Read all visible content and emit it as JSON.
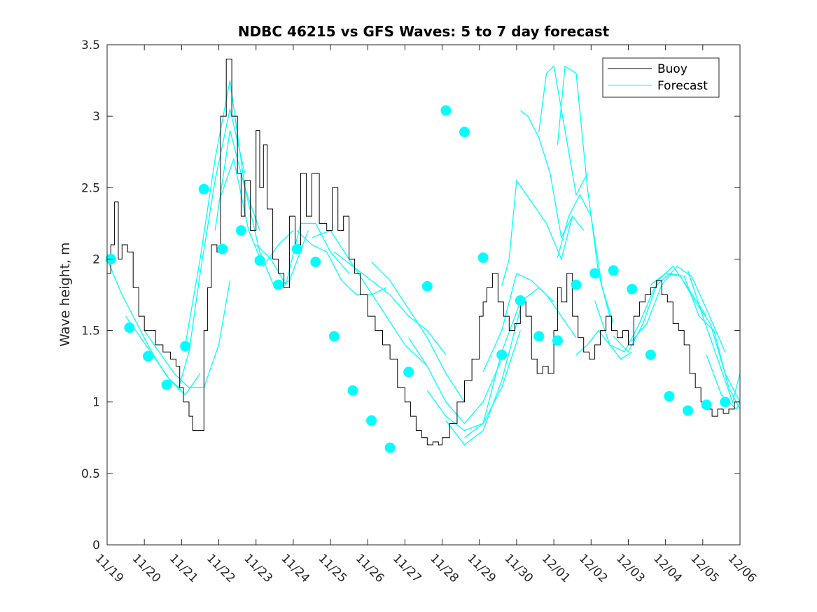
{
  "chart_data": {
    "type": "line",
    "title": "NDBC 46215 vs GFS Waves: 5 to 7 day forecast",
    "xlabel": "",
    "ylabel": "Wave height, m",
    "xlim": [
      0,
      17
    ],
    "ylim": [
      0,
      3.5
    ],
    "yticks": [
      0,
      0.5,
      1,
      1.5,
      2,
      2.5,
      3,
      3.5
    ],
    "ytick_labels": [
      "0",
      "0.5",
      "1",
      "1.5",
      "2",
      "2.5",
      "3",
      "3.5"
    ],
    "xtick_labels": [
      "11/19",
      "11/20",
      "11/21",
      "11/22",
      "11/23",
      "11/24",
      "11/25",
      "11/26",
      "11/27",
      "11/28",
      "11/29",
      "11/30",
      "12/01",
      "12/02",
      "12/03",
      "12/04",
      "12/05",
      "12/06"
    ],
    "grid": false,
    "legend": {
      "position": "top-right",
      "entries": [
        "Buoy",
        "Forecast"
      ]
    },
    "colors": {
      "buoy": "#000000",
      "forecast": "#00ffff",
      "axis": "#262626"
    },
    "series": [
      {
        "name": "Buoy",
        "x": [
          0,
          0.1,
          0.2,
          0.3,
          0.4,
          0.55,
          0.7,
          0.85,
          1.0,
          1.15,
          1.3,
          1.5,
          1.7,
          1.85,
          1.95,
          2.05,
          2.2,
          2.3,
          2.45,
          2.6,
          2.7,
          2.8,
          2.95,
          3.05,
          3.2,
          3.35,
          3.5,
          3.6,
          3.7,
          3.85,
          4.0,
          4.1,
          4.2,
          4.3,
          4.45,
          4.6,
          4.75,
          4.9,
          5.05,
          5.2,
          5.35,
          5.5,
          5.7,
          5.9,
          6.05,
          6.2,
          6.35,
          6.5,
          6.65,
          6.8,
          7.0,
          7.2,
          7.4,
          7.6,
          7.8,
          8.0,
          8.15,
          8.3,
          8.45,
          8.6,
          8.75,
          8.9,
          9.0,
          9.2,
          9.4,
          9.6,
          9.8,
          10.0,
          10.1,
          10.2,
          10.35,
          10.5,
          10.65,
          10.8,
          10.95,
          11.1,
          11.25,
          11.4,
          11.55,
          11.7,
          11.85,
          12.0,
          12.1,
          12.2,
          12.35,
          12.5,
          12.65,
          12.8,
          12.95,
          13.1,
          13.25,
          13.4,
          13.55,
          13.7,
          13.85,
          14.0,
          14.15,
          14.3,
          14.45,
          14.6,
          14.75,
          14.9,
          15.05,
          15.2,
          15.35,
          15.5,
          15.65,
          15.8,
          15.95,
          16.1,
          16.25,
          16.4,
          16.55,
          16.7,
          16.85,
          17.0
        ],
        "values": [
          1.9,
          2.1,
          2.4,
          2.0,
          2.1,
          2.05,
          1.8,
          1.6,
          1.5,
          1.5,
          1.4,
          1.35,
          1.3,
          1.25,
          1.1,
          1.0,
          0.9,
          0.8,
          0.8,
          1.5,
          1.8,
          2.1,
          2.05,
          3.0,
          3.4,
          3.0,
          2.6,
          2.3,
          2.55,
          2.2,
          2.9,
          2.5,
          2.8,
          2.35,
          2.0,
          1.9,
          1.8,
          2.3,
          2.1,
          2.6,
          2.3,
          2.6,
          2.25,
          2.2,
          2.5,
          2.2,
          2.3,
          2.0,
          1.9,
          1.75,
          1.6,
          1.5,
          1.4,
          1.3,
          1.1,
          1.0,
          0.9,
          0.8,
          0.75,
          0.7,
          0.72,
          0.7,
          0.75,
          0.85,
          1.0,
          1.15,
          1.3,
          1.6,
          1.7,
          1.8,
          1.9,
          1.7,
          1.6,
          1.5,
          1.55,
          1.7,
          1.6,
          1.3,
          1.2,
          1.25,
          1.2,
          1.5,
          1.8,
          1.7,
          1.9,
          1.6,
          1.45,
          1.35,
          1.3,
          1.4,
          1.5,
          1.6,
          1.5,
          1.45,
          1.5,
          1.4,
          1.6,
          1.7,
          1.75,
          1.8,
          1.85,
          1.75,
          1.7,
          1.55,
          1.5,
          1.4,
          1.2,
          1.1,
          1.0,
          0.95,
          0.9,
          0.95,
          0.92,
          0.95,
          1.0,
          0.98
        ]
      },
      {
        "name": "Forecast",
        "segments": [
          {
            "x": [
              0.0,
              0.4,
              0.8,
              1.2,
              1.6,
              2.0
            ],
            "values": [
              2.0,
              1.75,
              1.55,
              1.35,
              1.18,
              1.08
            ]
          },
          {
            "x": [
              0.5,
              0.9,
              1.3,
              1.7,
              2.1,
              2.5
            ],
            "values": [
              1.6,
              1.45,
              1.3,
              1.15,
              1.05,
              1.2
            ]
          },
          {
            "x": [
              1.0,
              1.4,
              1.8,
              2.2,
              2.6,
              3.0,
              3.3
            ],
            "values": [
              1.5,
              1.35,
              1.2,
              1.1,
              1.1,
              1.4,
              1.85
            ]
          },
          {
            "x": [
              1.9,
              2.2,
              2.5,
              2.9,
              3.3,
              3.7
            ],
            "values": [
              1.08,
              1.35,
              1.9,
              2.55,
              3.05,
              2.6
            ]
          },
          {
            "x": [
              2.1,
              2.5,
              2.9,
              3.3,
              3.7,
              4.1
            ],
            "values": [
              1.4,
              2.0,
              2.7,
              3.25,
              2.5,
              2.2
            ]
          },
          {
            "x": [
              2.9,
              3.3,
              3.7,
              4.1,
              4.5,
              4.9,
              5.4
            ],
            "values": [
              2.2,
              2.9,
              2.5,
              2.05,
              1.8,
              1.85,
              2.2
            ]
          },
          {
            "x": [
              3.0,
              3.4,
              3.8,
              4.2,
              4.6,
              5.0
            ],
            "values": [
              2.4,
              2.7,
              2.2,
              1.95,
              2.1,
              2.2
            ]
          },
          {
            "x": [
              4.0,
              4.4,
              4.8,
              5.2,
              5.6,
              6.0,
              6.5
            ],
            "values": [
              2.1,
              2.0,
              1.82,
              2.25,
              2.25,
              2.05,
              1.9
            ]
          },
          {
            "x": [
              5.1,
              5.5,
              5.9,
              6.3,
              6.7,
              7.1,
              7.5
            ],
            "values": [
              2.2,
              2.1,
              2.05,
              1.85,
              1.75,
              1.75,
              1.8
            ]
          },
          {
            "x": [
              5.5,
              6.0,
              6.5,
              7.0,
              7.5,
              8.0,
              8.6
            ],
            "values": [
              2.15,
              2.2,
              2.0,
              1.8,
              1.6,
              1.4,
              1.25
            ]
          },
          {
            "x": [
              6.1,
              6.6,
              7.1,
              7.6,
              8.1,
              8.6,
              9.1
            ],
            "values": [
              2.05,
              1.95,
              1.85,
              1.75,
              1.6,
              1.5,
              1.33
            ]
          },
          {
            "x": [
              7.1,
              7.6,
              8.1,
              8.6,
              9.1,
              9.6
            ],
            "values": [
              1.98,
              1.85,
              1.65,
              1.45,
              1.2,
              1.0
            ]
          },
          {
            "x": [
              8.1,
              8.6,
              9.1,
              9.6,
              10.1,
              10.6
            ],
            "values": [
              1.45,
              1.25,
              1.0,
              0.85,
              1.0,
              1.3
            ]
          },
          {
            "x": [
              8.6,
              9.1,
              9.6,
              10.1,
              10.6,
              11.1
            ],
            "values": [
              1.08,
              0.9,
              0.8,
              0.85,
              1.1,
              1.5
            ]
          },
          {
            "x": [
              9.1,
              9.6,
              10.1,
              10.6,
              11.1
            ],
            "values": [
              0.87,
              0.7,
              0.8,
              1.15,
              1.65
            ]
          },
          {
            "x": [
              9.6,
              10.1,
              10.6,
              11.1,
              11.6,
              12.0
            ],
            "values": [
              0.75,
              0.85,
              1.35,
              1.7,
              1.8,
              1.7
            ]
          },
          {
            "x": [
              10.1,
              10.6,
              11.0,
              11.4,
              11.8,
              12.2,
              12.6
            ],
            "values": [
              1.21,
              1.5,
              1.9,
              1.85,
              1.75,
              1.6,
              1.45
            ]
          },
          {
            "x": [
              10.6,
              10.8,
              11.0,
              11.4,
              11.8,
              12.2,
              12.5
            ],
            "values": [
              1.81,
              2.0,
              2.55,
              2.4,
              2.25,
              2.0,
              2.3
            ]
          },
          {
            "x": [
              11.1,
              11.3,
              11.6,
              11.9,
              12.2,
              12.5,
              12.8
            ],
            "values": [
              3.04,
              3.0,
              2.85,
              2.6,
              2.15,
              2.3,
              2.2
            ]
          },
          {
            "x": [
              11.6,
              11.8,
              12.0,
              12.3,
              12.6,
              12.9
            ],
            "values": [
              2.89,
              3.3,
              3.35,
              2.9,
              2.45,
              2.6
            ]
          },
          {
            "x": [
              12.1,
              12.3,
              12.6,
              12.9,
              13.2,
              13.5
            ],
            "values": [
              2.8,
              3.35,
              3.3,
              2.5,
              1.9,
              1.6
            ]
          },
          {
            "x": [
              12.1,
              12.4,
              12.7,
              13.0,
              13.3,
              13.6
            ],
            "values": [
              2.01,
              2.3,
              2.45,
              2.3,
              1.8,
              1.55
            ]
          },
          {
            "x": [
              12.6,
              12.9,
              13.2,
              13.5,
              13.8,
              14.1
            ],
            "values": [
              1.33,
              1.4,
              1.5,
              1.4,
              1.3,
              1.35
            ]
          },
          {
            "x": [
              13.1,
              13.5,
              13.9,
              14.3,
              14.7,
              15.1
            ],
            "values": [
              1.71,
              1.4,
              1.35,
              1.55,
              1.8,
              1.9
            ]
          },
          {
            "x": [
              13.6,
              14.0,
              14.4,
              14.8,
              15.2,
              15.6,
              16.1
            ],
            "values": [
              1.46,
              1.35,
              1.55,
              1.85,
              1.95,
              1.8,
              1.6
            ]
          },
          {
            "x": [
              14.1,
              14.5,
              14.9,
              15.3,
              15.7,
              16.1,
              16.6
            ],
            "values": [
              1.43,
              1.55,
              1.82,
              1.95,
              1.88,
              1.65,
              1.35
            ]
          },
          {
            "x": [
              14.6,
              15.0,
              15.4,
              15.8,
              16.2,
              16.6,
              17.0
            ],
            "values": [
              1.82,
              1.9,
              1.88,
              1.7,
              1.55,
              1.2,
              1.0
            ]
          },
          {
            "x": [
              15.1,
              15.5,
              15.9,
              16.3,
              16.7,
              17.0
            ],
            "values": [
              1.9,
              1.88,
              1.6,
              1.5,
              1.1,
              0.95
            ]
          },
          {
            "x": [
              15.6,
              16.0,
              16.4,
              16.8,
              17.0
            ],
            "values": [
              1.92,
              1.6,
              1.3,
              1.0,
              1.2
            ]
          },
          {
            "x": [
              16.1,
              16.5,
              16.9,
              17.0
            ],
            "values": [
              1.33,
              1.05,
              0.95,
              1.0
            ]
          }
        ],
        "markers": {
          "x": [
            0.1,
            0.6,
            1.1,
            1.6,
            2.1,
            2.6,
            3.1,
            3.6,
            4.1,
            4.6,
            5.1,
            5.6,
            6.1,
            6.6,
            7.1,
            7.6,
            8.1,
            8.6,
            9.1,
            9.6,
            10.1,
            10.6,
            11.1,
            11.6,
            12.1,
            12.6,
            13.1,
            13.6,
            14.1,
            14.6,
            15.1,
            15.6,
            16.1,
            16.6
          ],
          "values": [
            2.0,
            1.52,
            1.32,
            1.12,
            1.39,
            2.49,
            2.07,
            2.2,
            1.99,
            1.82,
            2.07,
            1.98,
            1.46,
            1.08,
            0.87,
            0.68,
            1.21,
            1.81,
            3.04,
            2.89,
            2.01,
            1.33,
            1.71,
            1.46,
            1.43,
            1.82,
            1.9,
            1.92,
            1.79,
            1.33,
            1.04,
            0.94,
            0.98,
            1.0
          ]
        }
      }
    ]
  }
}
